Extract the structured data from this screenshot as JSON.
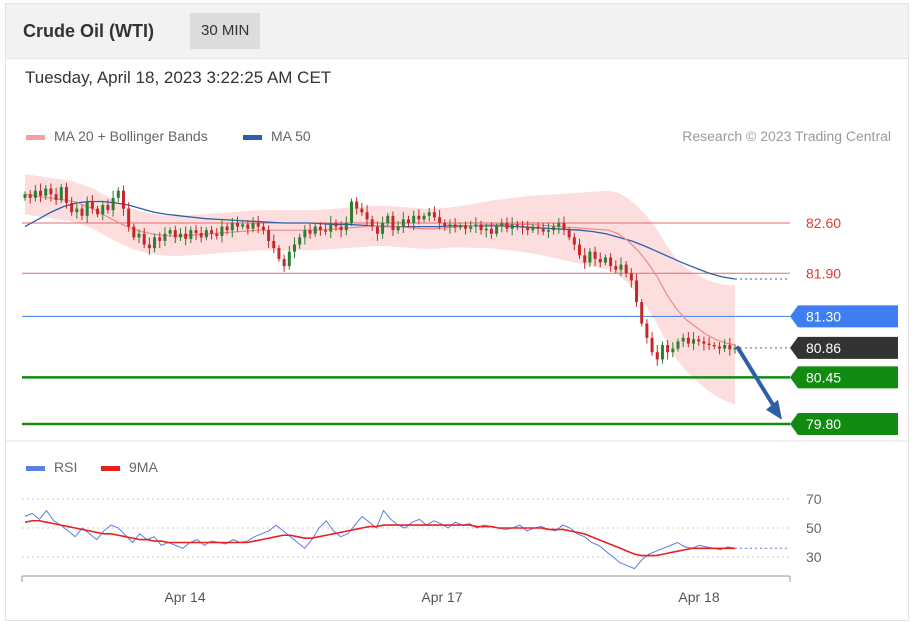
{
  "header": {
    "title": "Crude Oil (WTI)",
    "interval": "30 MIN"
  },
  "timestamp": "Tuesday, April 18, 2023 3:22:25 AM CET",
  "legend": {
    "ma20": {
      "label": "MA 20 + Bollinger Bands",
      "color": "#f08a8a"
    },
    "ma50": {
      "label": "MA 50",
      "color": "#2e5ea8"
    }
  },
  "credit": "Research © 2023 Trading Central",
  "rsi_legend": {
    "rsi": {
      "label": "RSI",
      "color": "#5b7fe0"
    },
    "ma9": {
      "label": "9MA",
      "color": "#e82020"
    }
  },
  "colors": {
    "up": "#2e7d32",
    "down": "#c62828",
    "resistance": "#e86a6a",
    "pivot": "#3d7ef0",
    "support": "#118c11",
    "arrow": "#2e5ea8",
    "band": "#fbd3d3"
  },
  "chart_data": [
    {
      "type": "candlestick",
      "name": "price",
      "x_ticks": [
        "Apr 14",
        "Apr 17",
        "Apr 18"
      ],
      "ylim": [
        79.55,
        83.3
      ],
      "levels": [
        {
          "label": "82.60",
          "value": 82.6,
          "kind": "resistance"
        },
        {
          "label": "81.90",
          "value": 81.9,
          "kind": "resistance"
        },
        {
          "label": "81.30",
          "value": 81.3,
          "kind": "pivot"
        },
        {
          "label": "80.86",
          "value": 80.86,
          "kind": "last"
        },
        {
          "label": "80.45",
          "value": 80.45,
          "kind": "support"
        },
        {
          "label": "79.80",
          "value": 79.8,
          "kind": "support"
        }
      ],
      "close": [
        83.0,
        82.95,
        83.05,
        82.98,
        83.08,
        83.0,
        82.92,
        83.1,
        82.88,
        82.75,
        82.8,
        82.7,
        82.9,
        82.8,
        82.72,
        82.85,
        82.78,
        82.95,
        83.05,
        82.8,
        82.55,
        82.4,
        82.45,
        82.3,
        82.25,
        82.4,
        82.35,
        82.45,
        82.5,
        82.4,
        82.45,
        82.38,
        82.5,
        82.46,
        82.4,
        82.5,
        82.45,
        82.42,
        82.55,
        82.5,
        82.6,
        82.55,
        82.58,
        82.52,
        82.6,
        82.55,
        82.5,
        82.35,
        82.25,
        82.1,
        82.0,
        82.2,
        82.3,
        82.4,
        82.5,
        82.45,
        82.55,
        82.5,
        82.48,
        82.6,
        82.55,
        82.5,
        82.6,
        82.9,
        82.8,
        82.75,
        82.65,
        82.55,
        82.45,
        82.6,
        82.7,
        82.5,
        82.55,
        82.65,
        82.6,
        82.7,
        82.65,
        82.7,
        82.75,
        82.68,
        82.6,
        82.55,
        82.58,
        82.54,
        82.56,
        82.52,
        82.55,
        82.58,
        82.5,
        82.52,
        82.45,
        82.55,
        82.6,
        82.52,
        82.58,
        82.56,
        82.54,
        82.5,
        82.55,
        82.52,
        82.48,
        82.5,
        82.55,
        82.6,
        82.5,
        82.4,
        82.3,
        82.15,
        82.05,
        82.2,
        82.1,
        82.05,
        82.12,
        82.0,
        81.95,
        82.02,
        81.9,
        81.8,
        81.5,
        81.2,
        81.0,
        80.8,
        80.7,
        80.9,
        80.8,
        80.85,
        80.95,
        81.0,
        80.92,
        80.98,
        80.95,
        80.92,
        80.9,
        80.88,
        80.85,
        80.9,
        80.84,
        80.86
      ],
      "ma20": [
        83.0,
        82.98,
        82.96,
        82.94,
        82.92,
        82.9,
        82.85,
        82.8,
        82.72,
        82.65,
        82.58,
        82.52,
        82.48,
        82.45,
        82.43,
        82.42,
        82.42,
        82.43,
        82.44,
        82.45,
        82.46,
        82.47,
        82.48,
        82.49,
        82.5,
        82.5,
        82.5,
        82.5,
        82.5,
        82.5,
        82.5,
        82.51,
        82.52,
        82.53,
        82.54,
        82.55,
        82.56,
        82.56,
        82.55,
        82.54,
        82.53,
        82.52,
        82.52,
        82.53,
        82.54,
        82.55,
        82.56,
        82.57,
        82.58,
        82.58,
        82.58,
        82.58,
        82.58,
        82.57,
        82.56,
        82.55,
        82.54,
        82.53,
        82.52,
        82.51,
        82.5,
        82.45,
        82.35,
        82.22,
        82.05,
        81.85,
        81.6,
        81.4,
        81.25,
        81.15,
        81.05,
        80.98,
        80.93,
        80.9
      ],
      "ma50": [
        82.55,
        82.65,
        82.75,
        82.83,
        82.88,
        82.9,
        82.9,
        82.88,
        82.85,
        82.8,
        82.75,
        82.72,
        82.7,
        82.68,
        82.66,
        82.65,
        82.64,
        82.63,
        82.62,
        82.61,
        82.6,
        82.6,
        82.6,
        82.59,
        82.58,
        82.58,
        82.57,
        82.56,
        82.55,
        82.55,
        82.55,
        82.55,
        82.55,
        82.56,
        82.56,
        82.56,
        82.56,
        82.56,
        82.55,
        82.54,
        82.53,
        82.52,
        82.51,
        82.5,
        82.48,
        82.45,
        82.4,
        82.35,
        82.28,
        82.2,
        82.12,
        82.04,
        81.97,
        81.9,
        81.85,
        81.82
      ]
    },
    {
      "type": "line",
      "name": "RSI",
      "y_ticks": [
        "70",
        "50",
        "30"
      ],
      "ylim": [
        20,
        80
      ],
      "series": [
        {
          "name": "RSI",
          "values": [
            58,
            60,
            56,
            62,
            55,
            52,
            48,
            44,
            50,
            46,
            42,
            48,
            52,
            50,
            45,
            40,
            46,
            42,
            44,
            38,
            40,
            38,
            36,
            40,
            42,
            38,
            41,
            40,
            39,
            42,
            40,
            41,
            44,
            46,
            48,
            52,
            48,
            44,
            40,
            36,
            42,
            50,
            55,
            48,
            44,
            46,
            52,
            58,
            54,
            50,
            62,
            56,
            52,
            50,
            54,
            56,
            52,
            55,
            53,
            50,
            54,
            52,
            53,
            50,
            52,
            51,
            50,
            49,
            50,
            52,
            48,
            50,
            51,
            49,
            48,
            52,
            50,
            46,
            44,
            40,
            38,
            34,
            30,
            26,
            24,
            22,
            28,
            32,
            34,
            36,
            38,
            40,
            37,
            36,
            38,
            37,
            36,
            35,
            37,
            36
          ]
        },
        {
          "name": "9MA",
          "values": [
            54,
            55,
            55,
            54,
            53,
            52,
            51,
            50,
            49,
            48,
            47,
            46,
            46,
            45,
            44,
            43,
            42,
            42,
            41,
            41,
            40,
            40,
            40,
            40,
            40,
            40,
            40,
            40,
            40,
            40,
            40,
            40,
            41,
            42,
            43,
            44,
            45,
            45,
            44,
            43,
            43,
            44,
            45,
            46,
            47,
            48,
            49,
            50,
            51,
            51,
            52,
            52,
            52,
            52,
            52,
            52,
            52,
            52,
            52,
            52,
            52,
            52,
            52,
            51,
            51,
            51,
            50,
            50,
            50,
            50,
            50,
            50,
            50,
            49,
            49,
            49,
            48,
            47,
            46,
            44,
            42,
            40,
            38,
            36,
            34,
            32,
            31,
            31,
            31,
            32,
            33,
            34,
            35,
            36,
            36,
            36,
            36,
            36,
            36,
            36
          ]
        }
      ]
    }
  ]
}
